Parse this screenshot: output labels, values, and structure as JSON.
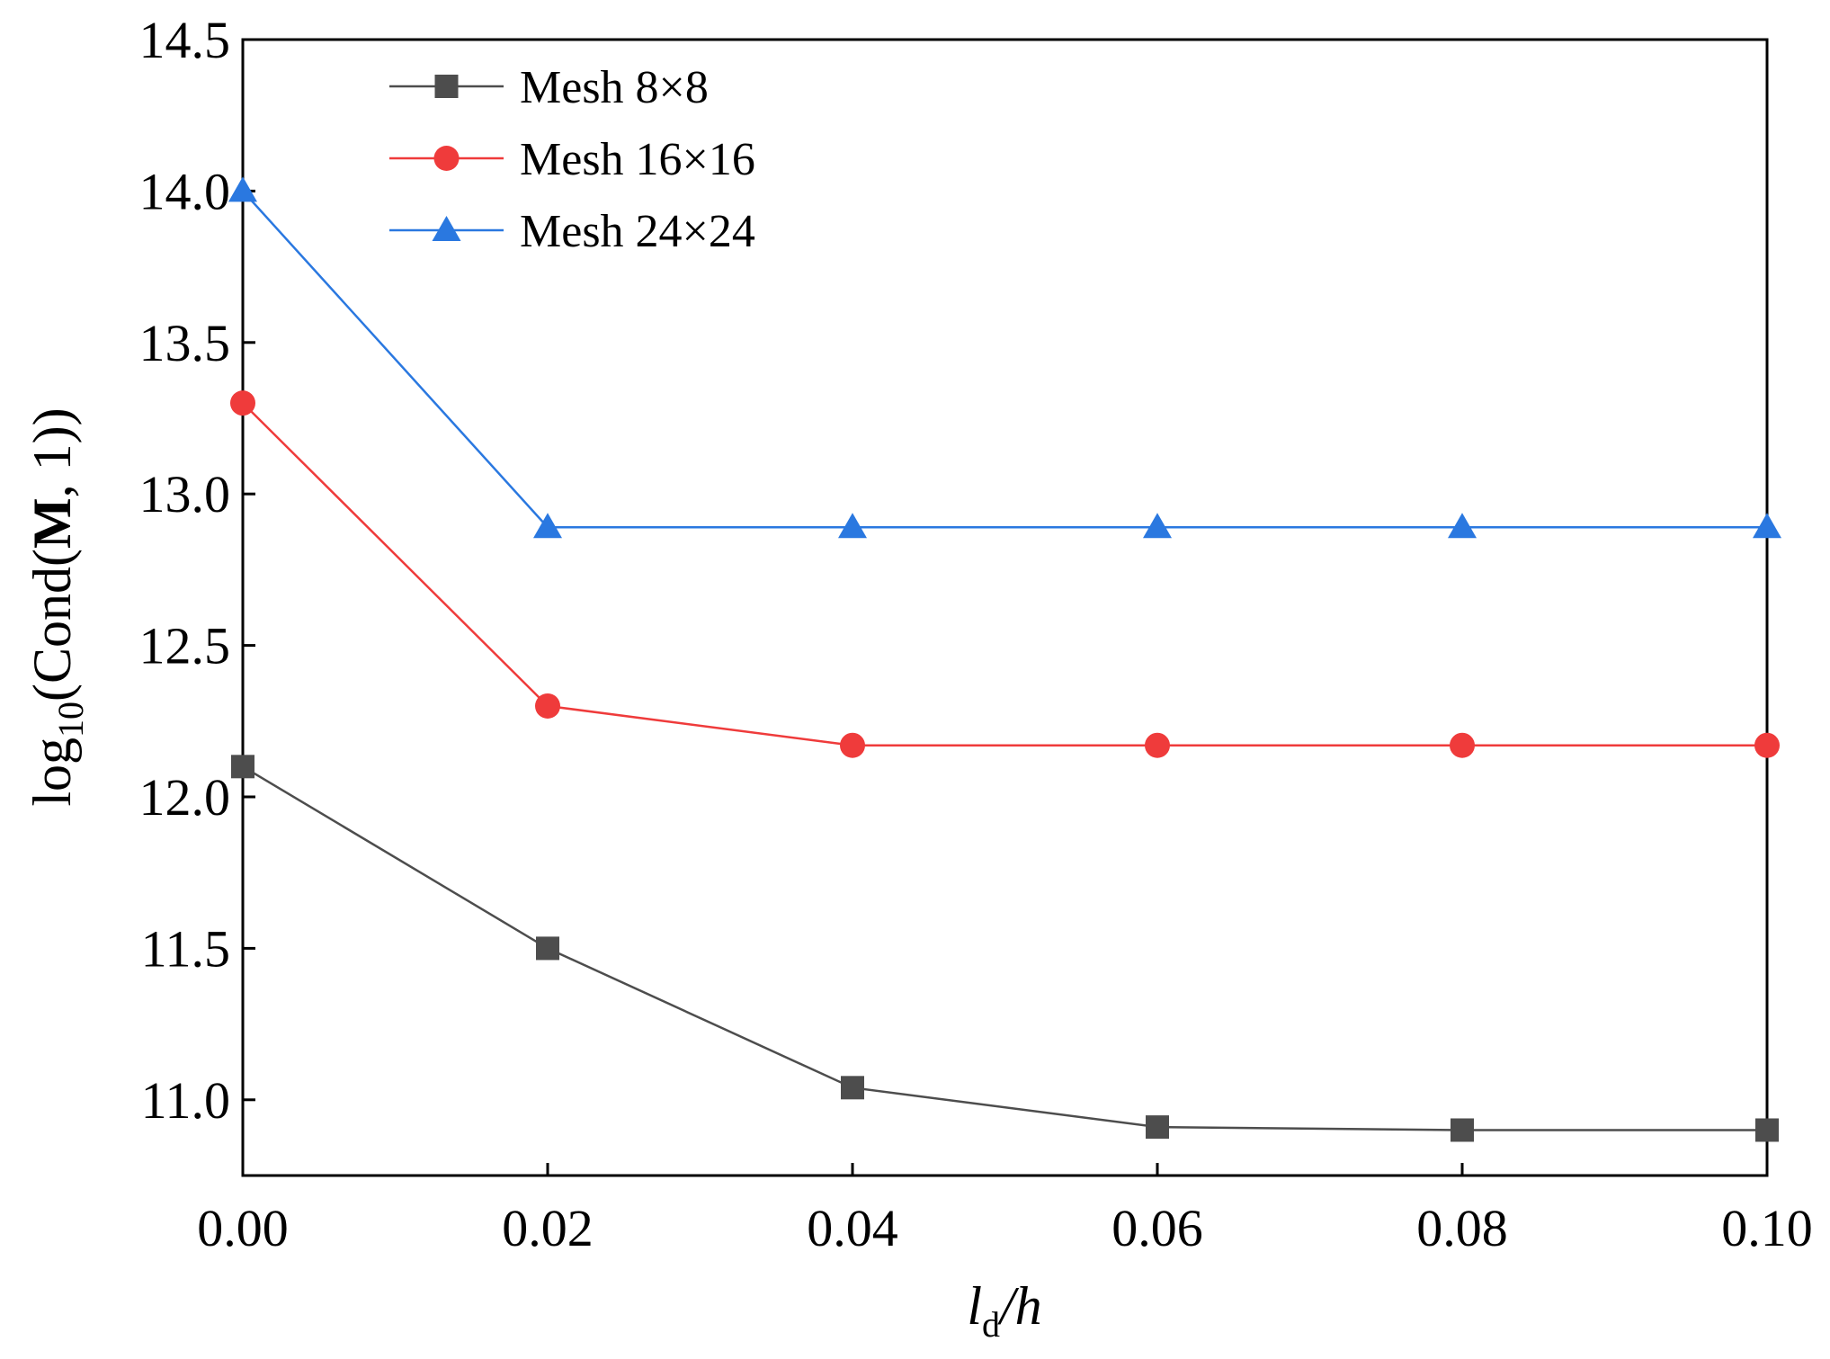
{
  "chart_data": {
    "type": "line",
    "x": [
      0.0,
      0.02,
      0.04,
      0.06,
      0.08,
      0.1
    ],
    "x_tick_labels": [
      "0.00",
      "0.02",
      "0.04",
      "0.06",
      "0.08",
      "0.10"
    ],
    "y_ticks": [
      11.0,
      11.5,
      12.0,
      12.5,
      13.0,
      13.5,
      14.0,
      14.5
    ],
    "y_tick_labels": [
      "11.0",
      "11.5",
      "12.0",
      "12.5",
      "13.0",
      "13.5",
      "14.0",
      "14.5"
    ],
    "xlim": [
      0.0,
      0.1
    ],
    "ylim": [
      10.75,
      14.5
    ],
    "xlabel": {
      "main": "l",
      "sub": "d",
      "rest": "/h"
    },
    "ylabel": {
      "pre": "log",
      "sub": "10",
      "mid": "(Cond(",
      "bold": "M",
      "post": ", 1))"
    },
    "legend_position": "top-left",
    "series": [
      {
        "name": "Mesh 8×8",
        "color": "#4d4d4d",
        "marker": "square",
        "values": [
          12.1,
          11.5,
          11.04,
          10.91,
          10.9,
          10.9
        ]
      },
      {
        "name": "Mesh 16×16",
        "color": "#ef3b3b",
        "marker": "circle",
        "values": [
          13.3,
          12.3,
          12.17,
          12.17,
          12.17,
          12.17
        ]
      },
      {
        "name": "Mesh 24×24",
        "color": "#2a78e0",
        "marker": "triangle",
        "values": [
          14.0,
          12.89,
          12.89,
          12.89,
          12.89,
          12.89
        ]
      }
    ]
  }
}
